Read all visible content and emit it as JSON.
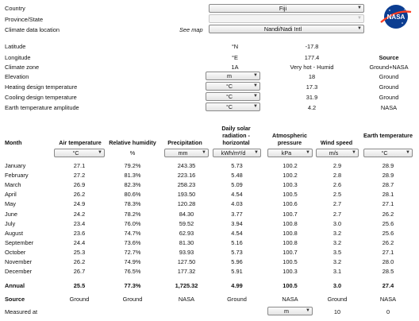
{
  "top": {
    "country_label": "Country",
    "province_label": "Province/State",
    "climate_location_label": "Climate data location",
    "see_map": "See map",
    "country_value": "Fiji",
    "province_value": "",
    "location_value": "Nandi/Nadi Intl"
  },
  "site": {
    "latitude_label": "Latitude",
    "latitude_unit": "°N",
    "latitude_value": "-17.8",
    "longitude_label": "Longitude",
    "longitude_unit": "°E",
    "longitude_value": "177.4",
    "source_header": "Source",
    "climate_zone_label": "Climate zone",
    "climate_zone_code": "1A",
    "climate_zone_desc": "Very hot - Humid",
    "climate_zone_source": "Ground+NASA",
    "elevation_label": "Elevation",
    "elevation_unit": "m",
    "elevation_value": "18",
    "elevation_source": "Ground",
    "heating_label": "Heating design temperature",
    "heating_unit": "°C",
    "heating_value": "17.3",
    "heating_source": "Ground",
    "cooling_label": "Cooling design temperature",
    "cooling_unit": "°C",
    "cooling_value": "31.9",
    "cooling_source": "Ground",
    "amplitude_label": "Earth temperature amplitude",
    "amplitude_unit": "°C",
    "amplitude_value": "4.2",
    "amplitude_source": "NASA"
  },
  "table": {
    "month_header": "Month",
    "headers": [
      "Air temperature",
      "Relative humidity",
      "Precipitation",
      "Daily solar radiation - horizontal",
      "Atmospheric pressure",
      "Wind speed",
      "Earth temperature"
    ],
    "units": [
      "°C",
      "%",
      "mm",
      "kWh/m²/d",
      "kPa",
      "m/s",
      "°C"
    ],
    "rows": [
      [
        "January",
        "27.1",
        "79.2%",
        "243.35",
        "5.73",
        "100.2",
        "2.9",
        "28.9"
      ],
      [
        "February",
        "27.2",
        "81.3%",
        "223.16",
        "5.48",
        "100.2",
        "2.8",
        "28.9"
      ],
      [
        "March",
        "26.9",
        "82.3%",
        "258.23",
        "5.09",
        "100.3",
        "2.6",
        "28.7"
      ],
      [
        "April",
        "26.2",
        "80.6%",
        "193.50",
        "4.54",
        "100.5",
        "2.5",
        "28.1"
      ],
      [
        "May",
        "24.9",
        "78.3%",
        "120.28",
        "4.03",
        "100.6",
        "2.7",
        "27.1"
      ],
      [
        "June",
        "24.2",
        "78.2%",
        "84.30",
        "3.77",
        "100.7",
        "2.7",
        "26.2"
      ],
      [
        "July",
        "23.4",
        "76.0%",
        "59.52",
        "3.94",
        "100.8",
        "3.0",
        "25.6"
      ],
      [
        "August",
        "23.6",
        "74.7%",
        "62.93",
        "4.54",
        "100.8",
        "3.2",
        "25.6"
      ],
      [
        "September",
        "24.4",
        "73.6%",
        "81.30",
        "5.16",
        "100.8",
        "3.2",
        "26.2"
      ],
      [
        "October",
        "25.3",
        "72.7%",
        "93.93",
        "5.73",
        "100.7",
        "3.5",
        "27.1"
      ],
      [
        "November",
        "26.2",
        "74.9%",
        "127.50",
        "5.96",
        "100.5",
        "3.2",
        "28.0"
      ],
      [
        "December",
        "26.7",
        "76.5%",
        "177.32",
        "5.91",
        "100.3",
        "3.1",
        "28.5"
      ]
    ],
    "annual": [
      "Annual",
      "25.5",
      "77.3%",
      "1,725.32",
      "4.99",
      "100.5",
      "3.0",
      "27.4"
    ],
    "source": [
      "Source",
      "Ground",
      "Ground",
      "NASA",
      "Ground",
      "NASA",
      "Ground",
      "NASA"
    ],
    "measured_label": "Measured at",
    "measured_unit": "m",
    "measured_values": [
      "10",
      "0"
    ]
  },
  "logo_text": "NASA",
  "colors": {
    "logo_blue": "#0b3d91",
    "logo_red": "#fc3d21"
  }
}
